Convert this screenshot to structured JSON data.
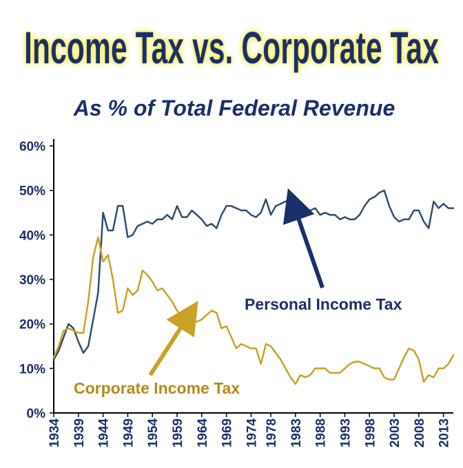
{
  "chart_data": {
    "type": "line",
    "title": "Income Tax vs. Corporate Tax",
    "subtitle": "As % of Total Federal Revenue",
    "xlabel": "",
    "ylabel": "",
    "xlim": [
      1934,
      2015
    ],
    "ylim": [
      0,
      60
    ],
    "y_ticks": [
      0,
      10,
      20,
      30,
      40,
      50,
      60
    ],
    "y_tick_labels": [
      "0%",
      "10%",
      "20%",
      "30%",
      "40%",
      "50%",
      "60%"
    ],
    "x_ticks": [
      1934,
      1939,
      1944,
      1949,
      1954,
      1959,
      1964,
      1969,
      1974,
      1978,
      1983,
      1988,
      1993,
      1998,
      2003,
      2008,
      2013
    ],
    "x_tick_labels": [
      "1934",
      "1939",
      "1944",
      "1949",
      "1954",
      "1959",
      "1964",
      "1969",
      "1974",
      "1978",
      "1983",
      "1988",
      "1993",
      "1998",
      "2003",
      "2008",
      "2013"
    ],
    "grid": false,
    "colors": {
      "title": "#1a2f6b",
      "title_glow": "#f2ee4a",
      "subtitle": "#1a2f6b",
      "axis_text": "#1a2f6b",
      "personal": "#2e4d70",
      "corporate": "#c9a227",
      "personal_label": "#1a2f6b",
      "corporate_label": "#b58a1a"
    },
    "annotations": [
      {
        "series": "Personal Income Tax",
        "text": "Personal Income Tax",
        "points_to": [
          1982,
          48
        ]
      },
      {
        "series": "Corporate Income Tax",
        "text": "Corporate Income Tax",
        "points_to": [
          1960,
          23
        ]
      }
    ],
    "series": [
      {
        "name": "Personal Income Tax",
        "x": [
          1934,
          1935,
          1936,
          1937,
          1938,
          1939,
          1940,
          1941,
          1942,
          1943,
          1944,
          1945,
          1946,
          1947,
          1948,
          1949,
          1950,
          1951,
          1952,
          1953,
          1954,
          1955,
          1956,
          1957,
          1958,
          1959,
          1960,
          1961,
          1962,
          1963,
          1964,
          1965,
          1966,
          1967,
          1968,
          1969,
          1970,
          1971,
          1972,
          1973,
          1974,
          1975,
          1976,
          1977,
          1978,
          1979,
          1980,
          1981,
          1982,
          1983,
          1984,
          1985,
          1986,
          1987,
          1988,
          1989,
          1990,
          1991,
          1992,
          1993,
          1994,
          1995,
          1996,
          1997,
          1998,
          1999,
          2000,
          2001,
          2002,
          2003,
          2004,
          2005,
          2006,
          2007,
          2008,
          2009,
          2010,
          2011,
          2012,
          2013,
          2014,
          2015
        ],
        "values": [
          12,
          14,
          17,
          20,
          19,
          16,
          13.5,
          15,
          21,
          27,
          45,
          41,
          41,
          46.5,
          46.5,
          39.5,
          40,
          42,
          42.5,
          43,
          42.5,
          43.5,
          43.5,
          44.5,
          43.5,
          46.5,
          44,
          44,
          45.5,
          44.5,
          43.5,
          42,
          42.5,
          41.5,
          44.5,
          46.5,
          46.5,
          46,
          45.5,
          45.5,
          44.5,
          44,
          45,
          48,
          44.5,
          46.5,
          47,
          47.5,
          48,
          48.5,
          45,
          45.5,
          45.5,
          46,
          44.5,
          45,
          44.5,
          44.5,
          43.5,
          44,
          43.5,
          43.5,
          44.5,
          46.5,
          48,
          48.5,
          49.5,
          50,
          46.5,
          44,
          43,
          43.5,
          43.5,
          45.5,
          45.5,
          43,
          41.5,
          47.5,
          46,
          47,
          46,
          46
        ]
      },
      {
        "name": "Corporate Income Tax",
        "x": [
          1934,
          1935,
          1936,
          1937,
          1938,
          1939,
          1940,
          1941,
          1942,
          1943,
          1944,
          1945,
          1946,
          1947,
          1948,
          1949,
          1950,
          1951,
          1952,
          1953,
          1954,
          1955,
          1956,
          1957,
          1958,
          1959,
          1960,
          1961,
          1962,
          1963,
          1964,
          1965,
          1966,
          1967,
          1968,
          1969,
          1970,
          1971,
          1972,
          1973,
          1974,
          1975,
          1976,
          1977,
          1978,
          1979,
          1980,
          1981,
          1982,
          1983,
          1984,
          1985,
          1986,
          1987,
          1988,
          1989,
          1990,
          1991,
          1992,
          1993,
          1994,
          1995,
          1996,
          1997,
          1998,
          1999,
          2000,
          2001,
          2002,
          2003,
          2004,
          2005,
          2006,
          2007,
          2008,
          2009,
          2010,
          2011,
          2012,
          2013,
          2014,
          2015
        ],
        "values": [
          12.5,
          15,
          18.5,
          19,
          18.5,
          18,
          18,
          25,
          35,
          39.5,
          34,
          35.5,
          30,
          22.5,
          23,
          28,
          26.5,
          27.5,
          32,
          31,
          29.5,
          27.5,
          28,
          26.5,
          25,
          23,
          21.5,
          22,
          21,
          20.5,
          21,
          22,
          23,
          22.5,
          19,
          19.5,
          17,
          14.5,
          15.5,
          15,
          14.5,
          14.5,
          11,
          15.5,
          15,
          13.5,
          12,
          10,
          8,
          6.5,
          8.5,
          8,
          8.5,
          10,
          10,
          10,
          9,
          9,
          9,
          10,
          11,
          11.5,
          11.5,
          11,
          10.5,
          10,
          10,
          8,
          7.5,
          7.5,
          10,
          12.5,
          14.5,
          14,
          12,
          7,
          8.5,
          8,
          10,
          10,
          11,
          13
        ]
      }
    ]
  }
}
